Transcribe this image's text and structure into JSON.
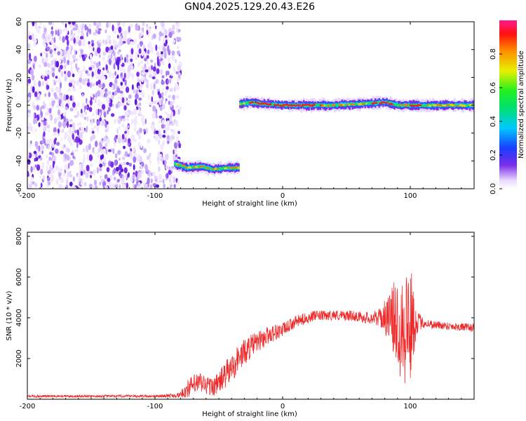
{
  "page_title": "GN04.2025.129.20.43.E26",
  "colors": {
    "trace": "#ee2a2a",
    "speckle": "#7a2ee8",
    "band_core": "#ff1a1a",
    "band_mid": "#22e04a",
    "band_edge": "#1a5cff"
  },
  "chart_data": [
    {
      "type": "heatmap",
      "title": "",
      "xlabel": "Height of straight line (km)",
      "ylabel": "Frequency (Hz)",
      "xlim": [
        -200,
        150
      ],
      "ylim": [
        -60,
        60
      ],
      "x_ticks": [
        "-200",
        "-100",
        "0",
        "100"
      ],
      "y_ticks": [
        "-60",
        "-40",
        "-20",
        "0",
        "20",
        "40",
        "60"
      ],
      "noise_region_x": [
        -200,
        -80
      ],
      "ridge": [
        {
          "x": -85,
          "f": -42,
          "amp": 0.45
        },
        {
          "x": -75,
          "f": -45,
          "amp": 0.55
        },
        {
          "x": -65,
          "f": -44,
          "amp": 0.6
        },
        {
          "x": -55,
          "f": -46,
          "amp": 0.55
        },
        {
          "x": -45,
          "f": -45,
          "amp": 0.6
        },
        {
          "x": -36,
          "f": -45,
          "amp": 0.5
        },
        {
          "x": -35,
          "f": 1,
          "amp": 0.55
        },
        {
          "x": -25,
          "f": 2,
          "amp": 0.85
        },
        {
          "x": -15,
          "f": 1,
          "amp": 0.8
        },
        {
          "x": 0,
          "f": 0,
          "amp": 0.9
        },
        {
          "x": 20,
          "f": 0,
          "amp": 0.85
        },
        {
          "x": 40,
          "f": 0,
          "amp": 0.75
        },
        {
          "x": 60,
          "f": 1,
          "amp": 0.75
        },
        {
          "x": 80,
          "f": 2,
          "amp": 0.9
        },
        {
          "x": 90,
          "f": 0,
          "amp": 0.7
        },
        {
          "x": 100,
          "f": 0,
          "amp": 0.85
        },
        {
          "x": 120,
          "f": 0,
          "amp": 0.75
        },
        {
          "x": 150,
          "f": 0,
          "amp": 0.7
        }
      ]
    },
    {
      "type": "colorbar",
      "label": "Normalized spectral amplitude",
      "range": [
        0,
        1
      ],
      "ticks": [
        "0.0",
        "0.2",
        "0.4",
        "0.6",
        "0.8"
      ]
    },
    {
      "type": "line",
      "title": "",
      "xlabel": "Height of straight line (km)",
      "ylabel": "SNR (10 * v/v)",
      "xlim": [
        -200,
        150
      ],
      "ylim": [
        0,
        8200
      ],
      "x_ticks": [
        "-200",
        "-100",
        "0",
        "100"
      ],
      "y_ticks": [
        "2000",
        "4000",
        "6000",
        "8000"
      ],
      "series": [
        {
          "x": [
            -200,
            -180,
            -160,
            -140,
            -120,
            -100,
            -90,
            -80,
            -75,
            -70,
            -65,
            -60,
            -55,
            -50,
            -45,
            -40,
            -35,
            -30,
            -25,
            -20,
            -15,
            -10,
            -5,
            0,
            5,
            10,
            15,
            20,
            25,
            30,
            35,
            40,
            45,
            50,
            55,
            60,
            65,
            70,
            75,
            80,
            85,
            90,
            95,
            100,
            105,
            110,
            120,
            130,
            140,
            150
          ],
          "values": [
            150,
            150,
            150,
            150,
            150,
            150,
            170,
            200,
            500,
            700,
            800,
            700,
            600,
            800,
            1200,
            1500,
            2000,
            2300,
            2600,
            2800,
            3000,
            3200,
            3300,
            3400,
            3600,
            3800,
            3900,
            4000,
            4100,
            4100,
            4100,
            4150,
            4100,
            4100,
            4100,
            4050,
            4000,
            4000,
            4000,
            4050,
            4000,
            3800,
            3700,
            3700,
            3800,
            3750,
            3650,
            3600,
            3550,
            3500
          ],
          "noise": [
            60,
            60,
            60,
            60,
            60,
            60,
            80,
            150,
            450,
            500,
            550,
            500,
            450,
            550,
            700,
            700,
            700,
            650,
            600,
            500,
            500,
            450,
            400,
            350,
            300,
            300,
            300,
            250,
            250,
            250,
            250,
            250,
            250,
            250,
            250,
            250,
            300,
            300,
            400,
            800,
            1400,
            2400,
            3200,
            3000,
            600,
            250,
            200,
            200,
            200,
            200
          ]
        }
      ]
    }
  ]
}
